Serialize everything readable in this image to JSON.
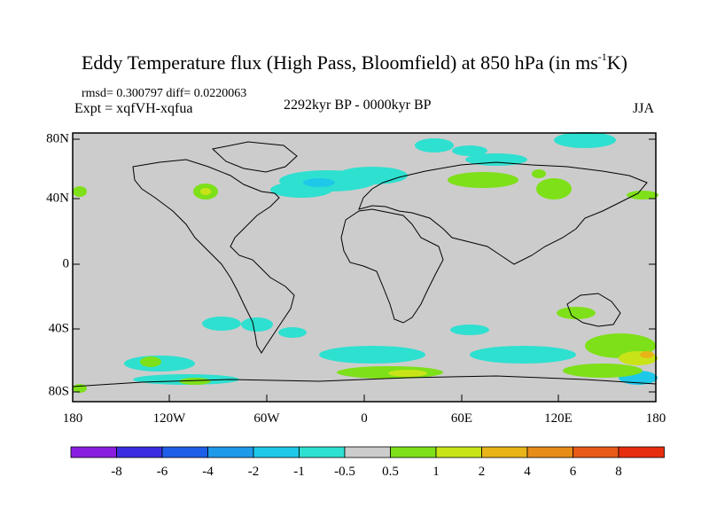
{
  "title": {
    "main": "Eddy Temperature flux (High Pass, Bloomfield) at 850 hPa (in ms",
    "exponent": "-1",
    "unit_tail": "K)"
  },
  "stats": "rmsd= 0.300797 diff= 0.0220063",
  "experiment": "Expt = xqfVH-xqfua",
  "period": "2292kyr BP - 0000kyr BP",
  "season": "JJA",
  "axes": {
    "lat_labels": [
      "80N",
      "40N",
      "0",
      "40S",
      "80S"
    ],
    "lon_labels": [
      "180",
      "120W",
      "60W",
      "0",
      "60E",
      "120E",
      "180"
    ]
  },
  "colorbar": {
    "labels": [
      "-8",
      "-6",
      "-4",
      "-2",
      "-1",
      "-0.5",
      "0.5",
      "1",
      "2",
      "4",
      "6",
      "8"
    ],
    "colors": [
      "#8a1ee0",
      "#3a2ee0",
      "#1e5ee8",
      "#1e9ae8",
      "#1ec8e8",
      "#2ee0d0",
      "#cccccc",
      "#7ee018",
      "#c8e418",
      "#e8b418",
      "#e88c18",
      "#e85a18",
      "#e82e10"
    ]
  },
  "colors": {
    "background": "#cccccc",
    "neg_small": "#2ee0d0",
    "neg_mid": "#1ec8e8",
    "pos_small": "#7ee018",
    "pos_mid": "#c8e418",
    "pos_large": "#e8b418"
  }
}
